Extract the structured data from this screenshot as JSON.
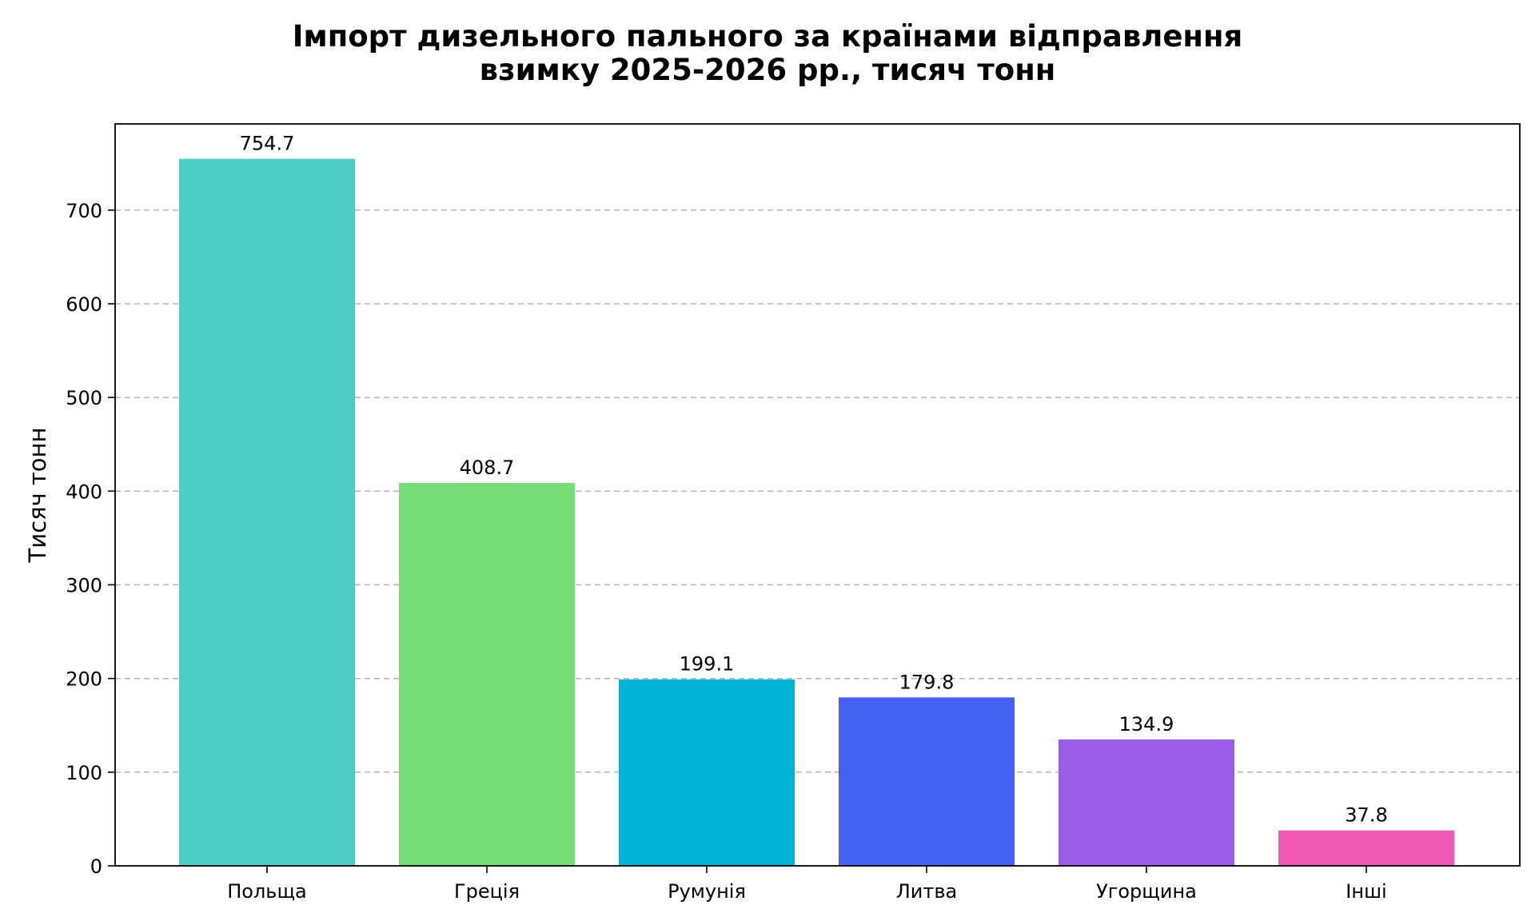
{
  "chart_data": {
    "type": "bar",
    "title": "Імпорт дизельного пального за країнами відправлення",
    "subtitle": "взимку 2025-2026 рр., тисяч тонн",
    "xlabel": "",
    "ylabel": "Тисяч тонн",
    "categories": [
      "Польща",
      "Греція",
      "Румунія",
      "Литва",
      "Угорщина",
      "Інші"
    ],
    "values": [
      754.7,
      408.7,
      199.1,
      179.8,
      134.9,
      37.8
    ],
    "value_labels": [
      "754.7",
      "408.7",
      "199.1",
      "179.8",
      "134.9",
      "37.8"
    ],
    "colors": [
      "#4ecdc4",
      "#78dc78",
      "#00b4d8",
      "#4361ee",
      "#9b5de5",
      "#f15bb5"
    ],
    "yticks": [
      0,
      100,
      200,
      300,
      400,
      500,
      600,
      700
    ],
    "ytick_labels": [
      "0",
      "100",
      "200",
      "300",
      "400",
      "500",
      "600",
      "700"
    ],
    "ylim": [
      0,
      792
    ],
    "grid": "y-dashed",
    "legend": "none"
  }
}
